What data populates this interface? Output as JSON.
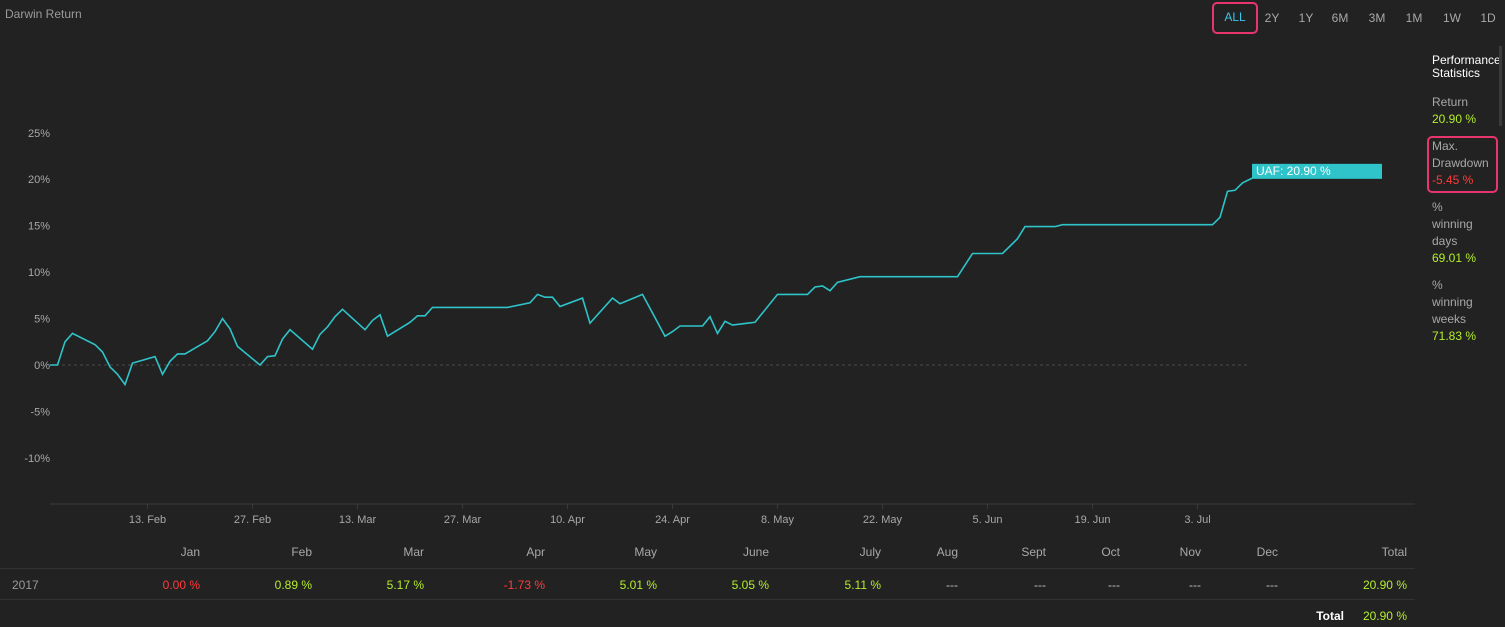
{
  "header": {
    "title": "Darwin Return"
  },
  "range_buttons": [
    {
      "label": "ALL",
      "active": true
    },
    {
      "label": "2Y",
      "active": false
    },
    {
      "label": "1Y",
      "active": false
    },
    {
      "label": "6M",
      "active": false
    },
    {
      "label": "3M",
      "active": false
    },
    {
      "label": "1M",
      "active": false
    },
    {
      "label": "1W",
      "active": false
    },
    {
      "label": "1D",
      "active": false
    }
  ],
  "stats": {
    "heading_line1": "Performance",
    "heading_line2": "Statistics",
    "return_label": "Return",
    "return_value": "20.90 %",
    "drawdown_label_1": "Max.",
    "drawdown_label_2": "Drawdown",
    "drawdown_value": "-5.45 %",
    "winning_days_label_1": "%",
    "winning_days_label_2": "winning",
    "winning_days_label_3": "days",
    "winning_days_value": "69.01 %",
    "winning_weeks_label_1": "%",
    "winning_weeks_label_2": "winning",
    "winning_weeks_label_3": "weeks",
    "winning_weeks_value": "71.83 %"
  },
  "chart_data": {
    "type": "line",
    "title": "Darwin Return",
    "yticks": [
      "25%",
      "20%",
      "15%",
      "10%",
      "5%",
      "0%",
      "-5%",
      "-10%"
    ],
    "ytick_values": [
      25,
      20,
      15,
      10,
      5,
      0,
      -5,
      -10
    ],
    "ylim": [
      -15,
      30
    ],
    "xticks": [
      "13. Feb",
      "27. Feb",
      "13. Mar",
      "27. Mar",
      "10. Apr",
      "24. Apr",
      "8. May",
      "22. May",
      "5. Jun",
      "19. Jun",
      "3. Jul"
    ],
    "tooltip_label": "UAF: 20.90 %",
    "line_color": "#2ec4c9",
    "series": [
      {
        "name": "UAF",
        "points": [
          [
            "2017-01-31",
            0.0
          ],
          [
            "2017-02-01",
            0.0
          ],
          [
            "2017-02-02",
            2.5
          ],
          [
            "2017-02-03",
            3.4
          ],
          [
            "2017-02-06",
            2.2
          ],
          [
            "2017-02-07",
            1.4
          ],
          [
            "2017-02-08",
            -0.2
          ],
          [
            "2017-02-09",
            -1.0
          ],
          [
            "2017-02-10",
            -2.1
          ],
          [
            "2017-02-11",
            0.2
          ],
          [
            "2017-02-14",
            0.9
          ],
          [
            "2017-02-15",
            -1.0
          ],
          [
            "2017-02-16",
            0.4
          ],
          [
            "2017-02-17",
            1.2
          ],
          [
            "2017-02-18",
            1.2
          ],
          [
            "2017-02-21",
            2.6
          ],
          [
            "2017-02-22",
            3.6
          ],
          [
            "2017-02-23",
            5.0
          ],
          [
            "2017-02-24",
            3.9
          ],
          [
            "2017-02-25",
            2.0
          ],
          [
            "2017-02-28",
            0.0
          ],
          [
            "2017-03-01",
            0.9
          ],
          [
            "2017-03-02",
            1.0
          ],
          [
            "2017-03-03",
            2.8
          ],
          [
            "2017-03-04",
            3.8
          ],
          [
            "2017-03-07",
            1.7
          ],
          [
            "2017-03-08",
            3.3
          ],
          [
            "2017-03-09",
            4.1
          ],
          [
            "2017-03-10",
            5.2
          ],
          [
            "2017-03-11",
            6.0
          ],
          [
            "2017-03-14",
            3.8
          ],
          [
            "2017-03-15",
            4.8
          ],
          [
            "2017-03-16",
            5.4
          ],
          [
            "2017-03-17",
            3.1
          ],
          [
            "2017-03-20",
            4.6
          ],
          [
            "2017-03-21",
            5.3
          ],
          [
            "2017-03-22",
            5.3
          ],
          [
            "2017-03-23",
            6.2
          ],
          [
            "2017-04-02",
            6.2
          ],
          [
            "2017-04-05",
            6.7
          ],
          [
            "2017-04-06",
            7.6
          ],
          [
            "2017-04-07",
            7.3
          ],
          [
            "2017-04-08",
            7.3
          ],
          [
            "2017-04-09",
            6.3
          ],
          [
            "2017-04-12",
            7.2
          ],
          [
            "2017-04-13",
            4.5
          ],
          [
            "2017-04-16",
            7.2
          ],
          [
            "2017-04-17",
            6.6
          ],
          [
            "2017-04-20",
            7.6
          ],
          [
            "2017-04-23",
            3.1
          ],
          [
            "2017-04-24",
            3.6
          ],
          [
            "2017-04-25",
            4.2
          ],
          [
            "2017-04-27",
            4.2
          ],
          [
            "2017-04-28",
            4.2
          ],
          [
            "2017-04-29",
            5.2
          ],
          [
            "2017-04-30",
            3.4
          ],
          [
            "2017-05-01",
            4.7
          ],
          [
            "2017-05-02",
            4.3
          ],
          [
            "2017-05-04",
            4.5
          ],
          [
            "2017-05-05",
            4.6
          ],
          [
            "2017-05-06",
            5.6
          ],
          [
            "2017-05-08",
            7.6
          ],
          [
            "2017-05-12",
            7.6
          ],
          [
            "2017-05-13",
            8.4
          ],
          [
            "2017-05-14",
            8.5
          ],
          [
            "2017-05-15",
            8.0
          ],
          [
            "2017-05-16",
            8.9
          ],
          [
            "2017-05-19",
            9.5
          ],
          [
            "2017-06-01",
            9.5
          ],
          [
            "2017-06-03",
            12.0
          ],
          [
            "2017-06-07",
            12.0
          ],
          [
            "2017-06-09",
            13.6
          ],
          [
            "2017-06-10",
            14.9
          ],
          [
            "2017-06-14",
            14.9
          ],
          [
            "2017-06-15",
            15.1
          ],
          [
            "2017-07-05",
            15.1
          ],
          [
            "2017-07-06",
            15.9
          ],
          [
            "2017-07-07",
            18.7
          ],
          [
            "2017-07-08",
            18.8
          ],
          [
            "2017-07-09",
            19.6
          ],
          [
            "2017-07-11",
            20.4
          ],
          [
            "2017-07-12",
            20.9
          ]
        ]
      }
    ],
    "zero_line": true
  },
  "monthly_table": {
    "headers": [
      "Jan",
      "Feb",
      "Mar",
      "Apr",
      "May",
      "June",
      "July",
      "Aug",
      "Sept",
      "Oct",
      "Nov",
      "Dec",
      "Total"
    ],
    "row_label": "2017",
    "values": [
      "0.00 %",
      "0.89 %",
      "5.17 %",
      "-1.73 %",
      "5.01 %",
      "5.05 %",
      "5.11 %",
      "---",
      "---",
      "---",
      "---",
      "---",
      "20.90 %"
    ],
    "total_label": "Total",
    "total_value": "20.90 %"
  }
}
